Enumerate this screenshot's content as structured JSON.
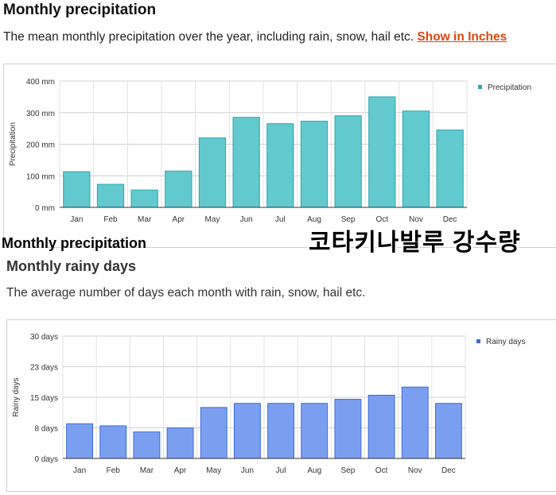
{
  "section1": {
    "title": "Monthly precipitation",
    "description": "The mean monthly precipitation over the year, including rain, snow, hail etc.",
    "link_label": "Show in Inches"
  },
  "overlay": {
    "english_caption": "Monthly precipitation",
    "korean_caption": "코타키나발루 강수량"
  },
  "section2": {
    "title": "Monthly rainy days",
    "description": "The average number of days each month with rain, snow, hail etc."
  },
  "colors": {
    "precip_bar": "#62c9cf",
    "precip_edge": "#2aa7ae",
    "rainy_bar": "#7b9ff0",
    "rainy_edge": "#3d69d9",
    "link": "#d9480f"
  },
  "chart_data": [
    {
      "type": "bar",
      "categories": [
        "Jan",
        "Feb",
        "Mar",
        "Apr",
        "May",
        "Jun",
        "Jul",
        "Aug",
        "Sep",
        "Oct",
        "Nov",
        "Dec"
      ],
      "series": [
        {
          "name": "Precipitation",
          "values": [
            113,
            73,
            55,
            115,
            220,
            285,
            265,
            273,
            290,
            350,
            305,
            245
          ]
        }
      ],
      "ylabel": "Precipitation",
      "yticks": [
        "0 mm",
        "100 mm",
        "200 mm",
        "300 mm",
        "400 mm"
      ],
      "ylim": [
        0,
        400
      ],
      "grid": true,
      "legend": "top-right"
    },
    {
      "type": "bar",
      "categories": [
        "Jan",
        "Feb",
        "Mar",
        "Apr",
        "May",
        "Jun",
        "Jul",
        "Aug",
        "Sep",
        "Oct",
        "Nov",
        "Dec"
      ],
      "series": [
        {
          "name": "Rainy days",
          "values": [
            8.5,
            8,
            6.5,
            7.5,
            12.5,
            13.5,
            13.5,
            13.5,
            14.5,
            15.5,
            17.5,
            13.5
          ]
        }
      ],
      "ylabel": "Rainy days",
      "yticks": [
        "0 days",
        "8 days",
        "15 days",
        "23 days",
        "30 days"
      ],
      "ylim": [
        0,
        30
      ],
      "grid": true,
      "legend": "top-right"
    }
  ]
}
